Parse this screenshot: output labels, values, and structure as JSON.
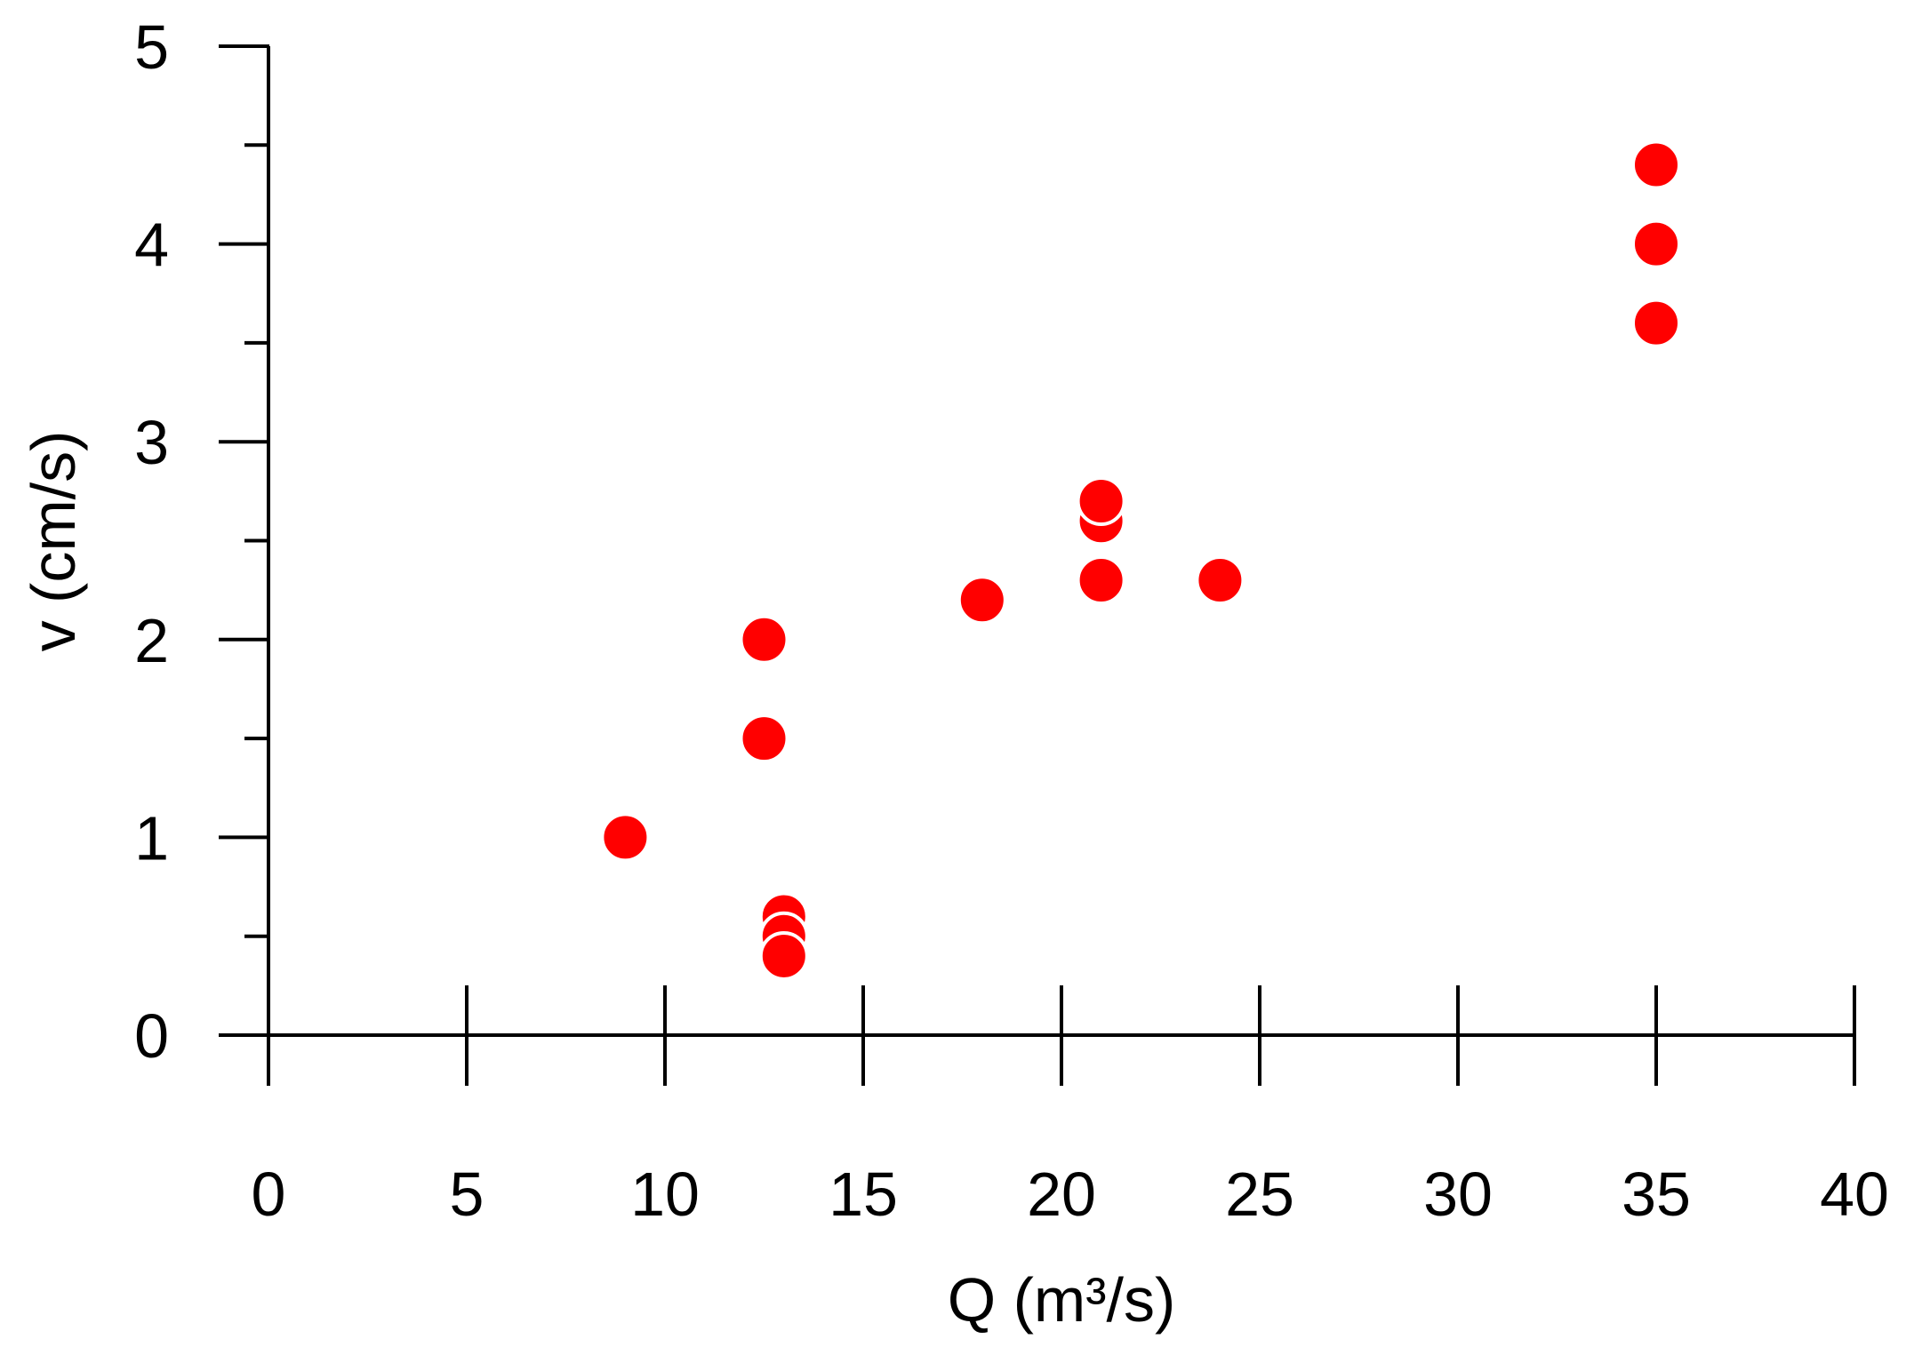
{
  "chart_data": {
    "type": "scatter",
    "title": "",
    "xlabel": "Q (m³/s)",
    "ylabel": "v (cm/s)",
    "xlim": [
      0,
      40
    ],
    "ylim": [
      0,
      5
    ],
    "x_ticks": [
      0,
      5,
      10,
      15,
      20,
      25,
      30,
      35,
      40
    ],
    "y_ticks": [
      0,
      1,
      2,
      3,
      4,
      5
    ],
    "y_minor_ticks": [
      0.5,
      1.5,
      2.5,
      3.5,
      4.5
    ],
    "x_tick_labels": [
      "0",
      "5",
      "10",
      "15",
      "20",
      "25",
      "30",
      "35",
      "40"
    ],
    "y_tick_labels": [
      "0",
      "1",
      "2",
      "3",
      "4",
      "5"
    ],
    "grid": false,
    "legend": "none",
    "marker_color": "#ff0000",
    "series": [
      {
        "points": [
          {
            "x": 9,
            "y": 1.0
          },
          {
            "x": 12.5,
            "y": 2.0
          },
          {
            "x": 12.5,
            "y": 1.5
          },
          {
            "x": 13,
            "y": 0.6
          },
          {
            "x": 13,
            "y": 0.5
          },
          {
            "x": 13,
            "y": 0.4
          },
          {
            "x": 18,
            "y": 2.2
          },
          {
            "x": 21,
            "y": 2.6
          },
          {
            "x": 21,
            "y": 2.7
          },
          {
            "x": 21,
            "y": 2.3
          },
          {
            "x": 24,
            "y": 2.3
          },
          {
            "x": 35,
            "y": 4.4
          },
          {
            "x": 35,
            "y": 4.0
          },
          {
            "x": 35,
            "y": 3.6
          }
        ]
      }
    ]
  }
}
